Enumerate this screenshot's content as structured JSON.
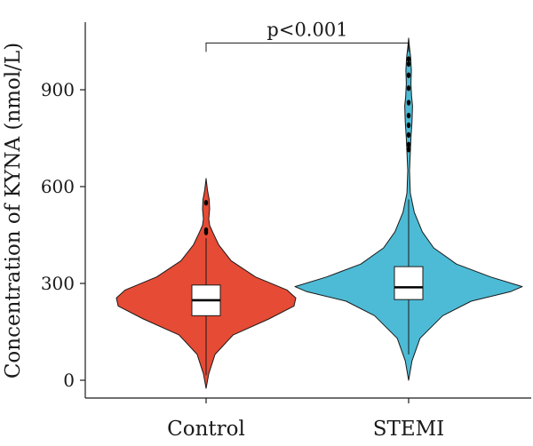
{
  "chart_data": {
    "type": "violin",
    "title": "",
    "xlabel": "",
    "ylabel": "Concentration of KYNA (nmol/L)",
    "ylim": [
      -30,
      1080
    ],
    "yticks": [
      0,
      300,
      600,
      900
    ],
    "categories": [
      "Control",
      "STEMI"
    ],
    "series": [
      {
        "name": "Control",
        "color": "#E64B35",
        "box": {
          "whisker_low": 15,
          "q1": 200,
          "median": 248,
          "q3": 295,
          "whisker_high": 440
        },
        "outliers": [
          458,
          465,
          550
        ],
        "density_profile": [
          [
            -25,
            0.0
          ],
          [
            20,
            0.03
          ],
          [
            80,
            0.1
          ],
          [
            140,
            0.3
          ],
          [
            190,
            0.7
          ],
          [
            230,
            0.98
          ],
          [
            255,
            1.0
          ],
          [
            280,
            0.9
          ],
          [
            320,
            0.55
          ],
          [
            370,
            0.28
          ],
          [
            420,
            0.14
          ],
          [
            455,
            0.08
          ],
          [
            480,
            0.04
          ],
          [
            500,
            0.03
          ],
          [
            530,
            0.04
          ],
          [
            560,
            0.035
          ],
          [
            590,
            0.015
          ],
          [
            625,
            0.0
          ]
        ]
      },
      {
        "name": "STEMI",
        "color": "#4DBBD5",
        "box": {
          "whisker_low": 80,
          "q1": 250,
          "median": 288,
          "q3": 352,
          "whisker_high": 560
        },
        "outliers": [
          715,
          730,
          760,
          790,
          820,
          860,
          905,
          945,
          980,
          995
        ],
        "density_profile": [
          [
            0,
            0.0
          ],
          [
            60,
            0.03
          ],
          [
            130,
            0.1
          ],
          [
            200,
            0.3
          ],
          [
            245,
            0.55
          ],
          [
            275,
            0.9
          ],
          [
            290,
            1.0
          ],
          [
            320,
            0.72
          ],
          [
            360,
            0.42
          ],
          [
            410,
            0.22
          ],
          [
            460,
            0.12
          ],
          [
            520,
            0.05
          ],
          [
            580,
            0.015
          ],
          [
            650,
            0.008
          ],
          [
            700,
            0.014
          ],
          [
            750,
            0.02
          ],
          [
            800,
            0.03
          ],
          [
            850,
            0.034
          ],
          [
            880,
            0.026
          ],
          [
            920,
            0.02
          ],
          [
            960,
            0.024
          ],
          [
            1000,
            0.018
          ],
          [
            1030,
            0.008
          ],
          [
            1060,
            0.0
          ]
        ]
      }
    ],
    "annotations": [
      {
        "text": "p<0.001",
        "between": [
          "Control",
          "STEMI"
        ],
        "bracket_y": 1045
      }
    ],
    "grid": false,
    "legend": "none"
  }
}
